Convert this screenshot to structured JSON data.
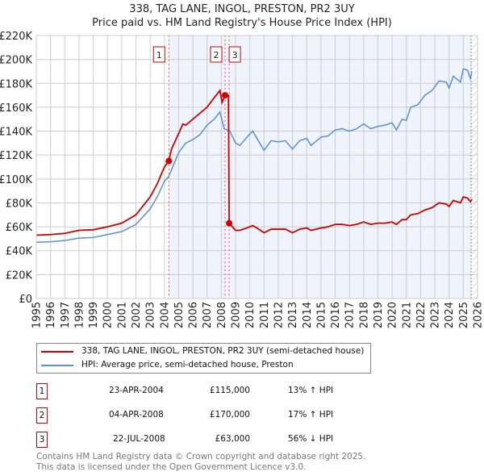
{
  "chart_data": {
    "type": "line",
    "title": "338, TAG LANE, INGOL, PRESTON, PR2 3UY",
    "subtitle": "Price paid vs. HM Land Registry's House Price Index (HPI)",
    "ylim": [
      0,
      220000
    ],
    "xlim": [
      1995,
      2026
    ],
    "y_ticks": [
      "£0",
      "£20K",
      "£40K",
      "£60K",
      "£80K",
      "£100K",
      "£120K",
      "£140K",
      "£160K",
      "£180K",
      "£200K",
      "£220K"
    ],
    "x_ticks": [
      "1995",
      "1996",
      "1997",
      "1998",
      "1999",
      "2000",
      "2001",
      "2002",
      "2003",
      "2004",
      "2005",
      "2006",
      "2007",
      "2008",
      "2009",
      "2010",
      "2011",
      "2012",
      "2013",
      "2014",
      "2015",
      "2016",
      "2017",
      "2018",
      "2019",
      "2020",
      "2021",
      "2022",
      "2023",
      "2024",
      "2025",
      "2026"
    ],
    "grid": true,
    "series": [
      {
        "name": "338, TAG LANE, INGOL, PRESTON, PR2 3UY (semi-detached house)",
        "color": "#cc0000",
        "x": [
          1995,
          1996,
          1997,
          1998,
          1999,
          2000,
          2001,
          2002,
          2003,
          2003.5,
          2004,
          2004.31,
          2004.5,
          2005,
          2005.3,
          2005.5,
          2006,
          2006.5,
          2007,
          2007.5,
          2007.9,
          2008.05,
          2008.26,
          2008.5,
          2008.55,
          2009,
          2009.3,
          2009.8,
          2010.2,
          2010.5,
          2011,
          2011.5,
          2012,
          2012.5,
          2013,
          2013.5,
          2014,
          2014.3,
          2015,
          2015.5,
          2016,
          2016.5,
          2017,
          2017.5,
          2018,
          2018.5,
          2019,
          2019.5,
          2020,
          2020.3,
          2020.7,
          2021,
          2021.3,
          2021.8,
          2022.3,
          2022.8,
          2023.3,
          2023.8,
          2024,
          2024.3,
          2024.8,
          2025,
          2025.3,
          2025.5,
          2025.6
        ],
        "values": [
          53,
          53.5,
          54.5,
          57,
          57.5,
          60,
          63,
          70,
          85,
          96,
          110,
          115,
          125,
          138,
          146,
          145,
          150,
          155,
          160,
          168,
          174,
          164,
          170,
          170,
          63,
          57,
          57,
          59,
          61,
          59,
          55,
          58,
          58,
          58,
          55,
          58,
          59,
          57,
          59,
          60,
          62,
          62,
          61,
          62,
          64,
          62,
          63,
          63,
          64,
          62,
          66,
          66,
          70,
          71,
          74,
          76,
          80,
          79,
          77,
          82,
          80,
          85,
          84,
          81,
          83
        ]
      },
      {
        "name": "HPI: Average price, semi-detached house, Preston",
        "color": "#5b8fd4",
        "x": [
          1995,
          1996,
          1997,
          1998,
          1999,
          2000,
          2001,
          2002,
          2003,
          2003.5,
          2004,
          2004.3,
          2005,
          2005.5,
          2006,
          2006.5,
          2007,
          2007.5,
          2007.9,
          2008.2,
          2008.6,
          2009,
          2009.3,
          2009.8,
          2010.2,
          2010.5,
          2011,
          2011.5,
          2012,
          2012.5,
          2013,
          2013.5,
          2014,
          2014.3,
          2015,
          2015.5,
          2016,
          2016.5,
          2017,
          2017.5,
          2018,
          2018.5,
          2019,
          2019.5,
          2020,
          2020.3,
          2020.7,
          2021,
          2021.3,
          2021.8,
          2022.3,
          2022.8,
          2023.3,
          2023.8,
          2024,
          2024.3,
          2024.8,
          2025,
          2025.3,
          2025.5,
          2025.6
        ],
        "values": [
          47,
          47.5,
          48.5,
          50.5,
          51,
          53.5,
          56,
          62,
          75,
          85,
          98,
          102,
          122,
          130,
          133,
          137,
          145,
          150,
          156,
          142,
          140,
          130,
          128,
          135,
          140,
          134,
          124,
          132,
          131,
          132,
          125,
          132,
          134,
          128,
          135,
          136,
          141,
          142,
          140,
          142,
          146,
          142,
          144,
          145,
          147,
          141,
          150,
          149,
          160,
          162,
          170,
          174,
          182,
          181,
          176,
          186,
          181,
          192,
          191,
          184,
          190
        ]
      }
    ],
    "sales": [
      {
        "label": "1",
        "date": "23-APR-2004",
        "x": 2004.31,
        "price": "£115,000",
        "value": 115,
        "hpi": "13% ↑ HPI"
      },
      {
        "label": "2",
        "date": "04-APR-2008",
        "x": 2008.26,
        "price": "£170,000",
        "value": 170,
        "hpi": "17% ↑ HPI"
      },
      {
        "label": "3",
        "date": "22-JUL-2008",
        "x": 2008.55,
        "price": "£63,000",
        "value": 63,
        "hpi": "56% ↓ HPI"
      }
    ]
  },
  "footer": {
    "line1": "Contains HM Land Registry data © Crown copyright and database right 2025.",
    "line2": "This data is licensed under the Open Government Licence v3.0."
  }
}
